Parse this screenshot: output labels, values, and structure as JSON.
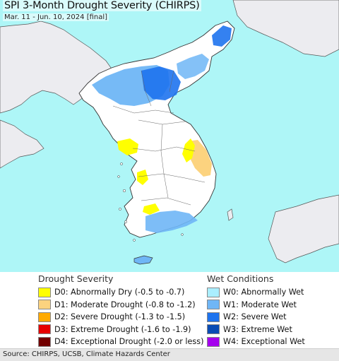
{
  "header": {
    "title": "SPI 3-Month Drought Severity (CHIRPS)",
    "subtitle": "Mar. 11 - Jun. 10, 2024 [final]"
  },
  "legend": {
    "drought": {
      "heading": "Drought Severity",
      "items": [
        {
          "code": "D0",
          "label": "D0: Abnormally Dry (-0.5 to -0.7)",
          "color": "#ffff00"
        },
        {
          "code": "D1",
          "label": "D1: Moderate Drought (-0.8 to -1.2)",
          "color": "#fcd37f"
        },
        {
          "code": "D2",
          "label": "D2: Severe Drought (-1.3 to -1.5)",
          "color": "#ffaa00"
        },
        {
          "code": "D3",
          "label": "D3: Extreme Drought (-1.6 to -1.9)",
          "color": "#e60000"
        },
        {
          "code": "D4",
          "label": "D4: Exceptional Drought (-2.0 or less)",
          "color": "#730000"
        }
      ]
    },
    "wet": {
      "heading": "Wet Conditions",
      "items": [
        {
          "code": "W0",
          "label": "W0: Abnormally Wet",
          "color": "#aaeeff"
        },
        {
          "code": "W1",
          "label": "W1: Moderate Wet",
          "color": "#6fb6f6"
        },
        {
          "code": "W2",
          "label": "W2: Severe Wet",
          "color": "#1e73ee"
        },
        {
          "code": "W3",
          "label": "W3: Extreme Wet",
          "color": "#0a4cb4"
        },
        {
          "code": "W4",
          "label": "W4: Exceptional Wet",
          "color": "#a500ee"
        }
      ]
    }
  },
  "map": {
    "water_color": "#aef6f7",
    "land_color": "#ffffff",
    "other_land_color": "#ececf0"
  },
  "footer": {
    "source": "Source: CHIRPS, UCSB, Climate Hazards Center"
  }
}
